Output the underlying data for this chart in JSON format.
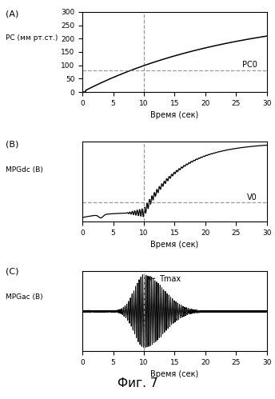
{
  "title": "Фиг. 7",
  "panel_labels": [
    "(A)",
    "(B)",
    "(C)"
  ],
  "xlabel": "Время (сек)",
  "ylabel_A": "РС (мм рт.ст.)",
  "ylabel_B": "MPGdc (В)",
  "ylabel_C": "MPGac (В)",
  "yticks_A": [
    0,
    50,
    100,
    150,
    200,
    250,
    300
  ],
  "xticks": [
    0,
    5,
    10,
    15,
    20,
    25,
    30
  ],
  "xlim": [
    0,
    30
  ],
  "ylim_A": [
    0,
    300
  ],
  "vline_x": 10,
  "pc0_label": "PC0",
  "pc0_y": 80,
  "v0_label": "V0",
  "tmax_label": "Tmax",
  "background_color": "#ffffff",
  "line_color": "#000000",
  "dashed_color": "#999999"
}
